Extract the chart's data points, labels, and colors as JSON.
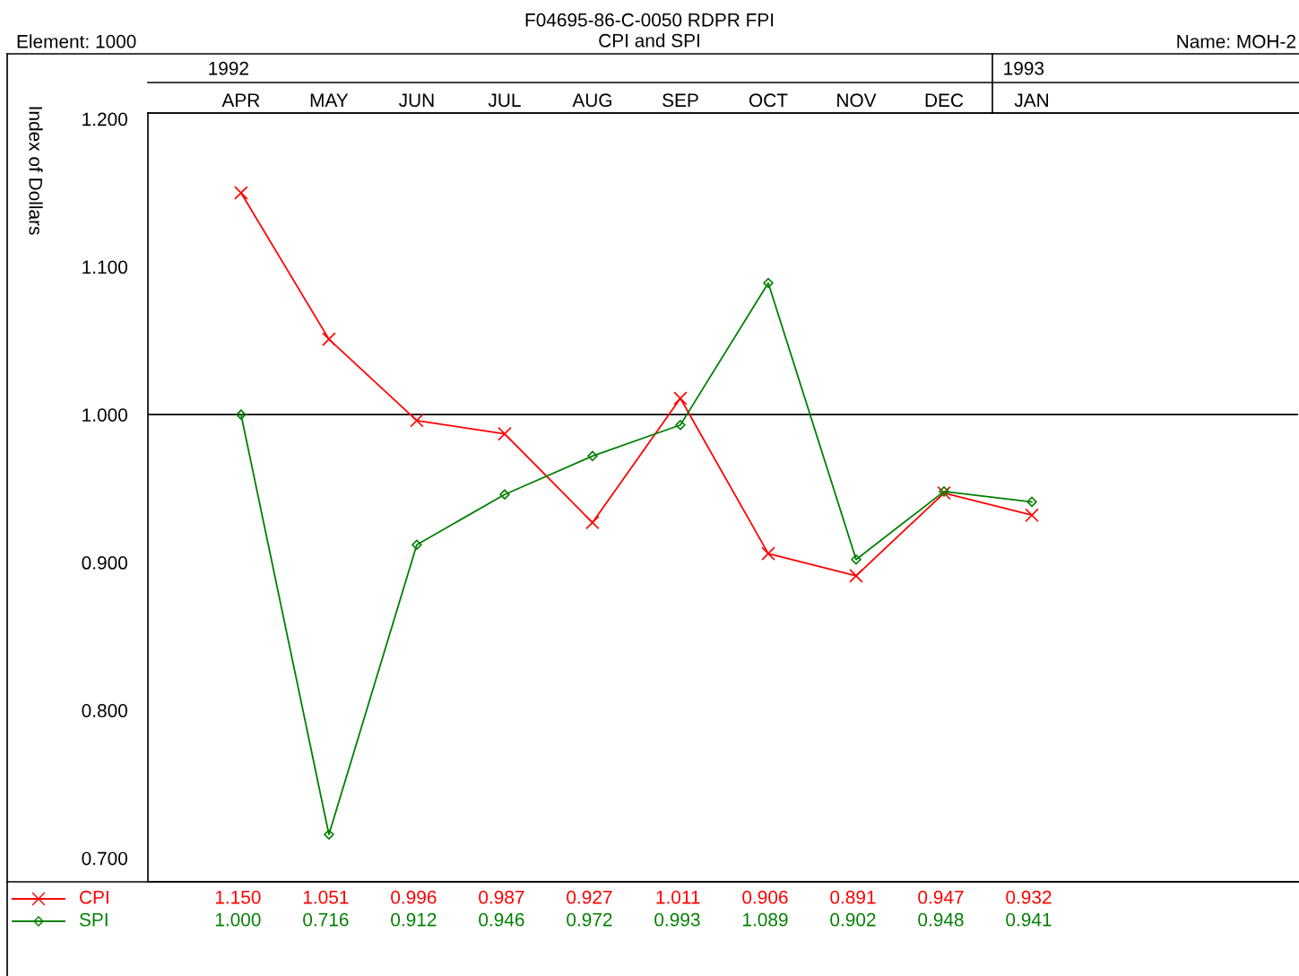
{
  "chart_data": {
    "type": "line",
    "title": "F04695-86-C-0050 RDPR FPI",
    "subtitle": "CPI and SPI",
    "ylabel": "Index of Dollars",
    "annotations": [
      "Element: 1000",
      "Name: MOH-2",
      "1992",
      "1993"
    ],
    "categories": [
      "APR",
      "MAY",
      "JUN",
      "JUL",
      "AUG",
      "SEP",
      "OCT",
      "NOV",
      "DEC",
      "JAN"
    ],
    "series": [
      {
        "name": "CPI",
        "color": "#ff0000",
        "marker": "cross",
        "values": [
          1.15,
          1.051,
          0.996,
          0.987,
          0.927,
          1.011,
          0.906,
          0.891,
          0.947,
          0.932
        ],
        "value_labels": [
          "1.150",
          "1.051",
          "0.996",
          "0.987",
          "0.927",
          "1.011",
          "0.906",
          "0.891",
          "0.947",
          "0.932"
        ]
      },
      {
        "name": "SPI",
        "color": "#008000",
        "marker": "diamond",
        "values": [
          1.0,
          0.716,
          0.912,
          0.946,
          0.972,
          0.993,
          1.089,
          0.902,
          0.948,
          0.941
        ],
        "value_labels": [
          "1.000",
          "0.716",
          "0.912",
          "0.946",
          "0.972",
          "0.993",
          "1.089",
          "0.902",
          "0.948",
          "0.941"
        ]
      }
    ],
    "ylim": [
      0.684,
      1.204
    ],
    "yticks": [
      {
        "value": 0.7,
        "label": "0.700"
      },
      {
        "value": 0.8,
        "label": "0.800"
      },
      {
        "value": 0.9,
        "label": "0.900"
      },
      {
        "value": 1.0,
        "label": "1.000"
      },
      {
        "value": 1.1,
        "label": "1.100"
      },
      {
        "value": 1.2,
        "label": "1.200"
      }
    ],
    "ref_lines": [
      {
        "axis": "y",
        "value": 1.0,
        "color": "#000000"
      }
    ],
    "grid": false,
    "legend": "bottom left",
    "line_style": "solid"
  }
}
